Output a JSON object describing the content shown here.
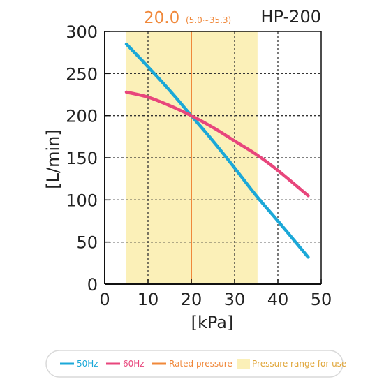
{
  "chart_data": {
    "type": "line",
    "title": "HP-200",
    "xlabel": "[kPa]",
    "ylabel": "[L/min]",
    "xlim": [
      0,
      50
    ],
    "ylim": [
      0,
      300
    ],
    "xticks": [
      0,
      10,
      20,
      30,
      40,
      50
    ],
    "yticks": [
      0,
      50,
      100,
      150,
      200,
      250,
      300
    ],
    "grid": true,
    "series": [
      {
        "name": "50Hz",
        "color": "#1ba8d8",
        "x": [
          5,
          10,
          15,
          20,
          25,
          30,
          35,
          40,
          47
        ],
        "y": [
          285,
          258,
          230,
          200,
          170,
          138,
          105,
          75,
          32
        ]
      },
      {
        "name": "60Hz",
        "color": "#e8467c",
        "x": [
          5,
          10,
          15,
          20,
          25,
          30,
          35,
          40,
          47
        ],
        "y": [
          228,
          222,
          212,
          200,
          186,
          170,
          154,
          135,
          105
        ]
      }
    ],
    "rated_pressure": {
      "name": "Rated pressure",
      "value": 20,
      "value_label": "20.0",
      "range_label": "(5.0~35.3)",
      "color": "#f0883a"
    },
    "pressure_range": {
      "name": "Pressure range for use",
      "from": 5,
      "to": 35.3,
      "color": "#fbf0b8"
    },
    "legend_position": "bottom"
  }
}
